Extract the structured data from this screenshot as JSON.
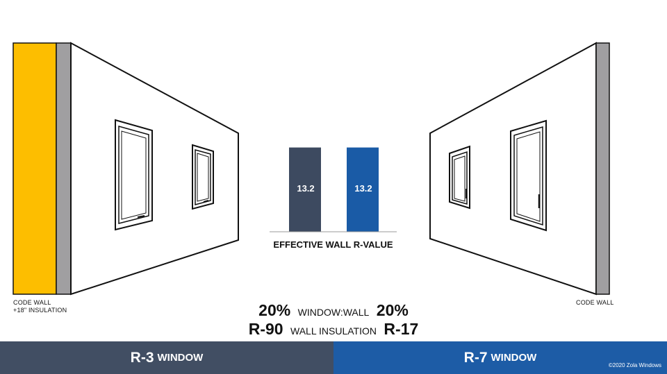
{
  "colors": {
    "insulation": "#FDBE00",
    "wall_edge": "#A09FA1",
    "bar_left": "#3D4A60",
    "bar_right": "#1A5BA6",
    "footer_left": "#414E63",
    "footer_right": "#1D5CA6"
  },
  "left_wall": {
    "label_line1": "CODE WALL",
    "label_line2": "+18\" INSULATION"
  },
  "right_wall": {
    "label": "CODE WALL"
  },
  "chart_data": {
    "type": "bar",
    "title": "EFFECTIVE WALL R-VALUE",
    "categories": [
      "R-3 WINDOW",
      "R-7 WINDOW"
    ],
    "values": [
      13.2,
      13.2
    ],
    "value_labels": [
      "13.2",
      "13.2"
    ],
    "ylim": [
      0,
      15
    ]
  },
  "stats": {
    "row1": {
      "left": "20%",
      "middle": "WINDOW:WALL",
      "right": "20%"
    },
    "row2": {
      "left": "R-90",
      "middle": "WALL INSULATION",
      "right": "R-17"
    }
  },
  "footer": {
    "left": {
      "strong": "R-3",
      "sub": "WINDOW"
    },
    "right": {
      "strong": "R-7",
      "sub": "WINDOW"
    },
    "copyright": "©2020 Zola Windows"
  }
}
